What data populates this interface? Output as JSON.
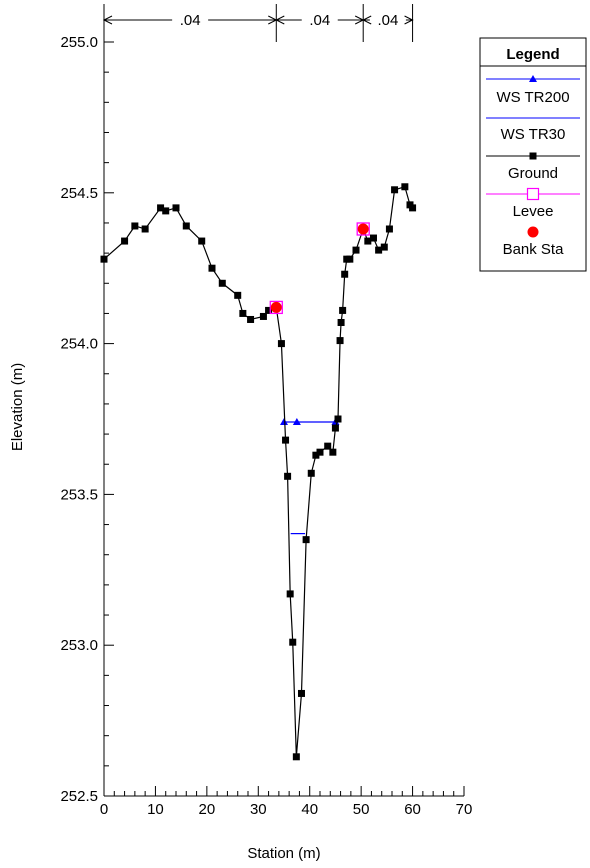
{
  "chart_data": {
    "type": "line",
    "title": "",
    "xlabel": "Station (m)",
    "ylabel": "Elevation (m)",
    "xlim": [
      0,
      70
    ],
    "ylim": [
      252.5,
      255.0
    ],
    "x_ticks": [
      0,
      10,
      20,
      30,
      40,
      50,
      60,
      70
    ],
    "y_ticks": [
      252.5,
      253.0,
      253.5,
      254.0,
      254.5,
      255.0
    ],
    "y_tick_labels": [
      "252.5",
      "253.0",
      "253.5",
      "254.0",
      "254.5",
      "255.0"
    ],
    "grid": false,
    "legend": {
      "title": "Legend",
      "placement": "top-right",
      "entries": [
        {
          "name": "WS TR200",
          "color": "#0000ff",
          "marker": "triangle"
        },
        {
          "name": "WS TR30",
          "color": "#0000ff",
          "marker": "none"
        },
        {
          "name": "Ground",
          "color": "#000000",
          "marker": "square"
        },
        {
          "name": "Levee",
          "color": "#ff00ff",
          "marker": "open-square"
        },
        {
          "name": "Bank Sta",
          "color": "#ff0000",
          "marker": "circle"
        }
      ]
    },
    "mannings_n": {
      "breaks": [
        0,
        33.5,
        50.4,
        60
      ],
      "labels": [
        ".04",
        ".04",
        ".04"
      ]
    },
    "series": [
      {
        "name": "Ground",
        "color": "#000000",
        "points": [
          [
            0.0,
            254.28
          ],
          [
            4.0,
            254.34
          ],
          [
            6.0,
            254.39
          ],
          [
            8.0,
            254.38
          ],
          [
            11.0,
            254.45
          ],
          [
            12.0,
            254.44
          ],
          [
            14.0,
            254.45
          ],
          [
            16.0,
            254.39
          ],
          [
            19.0,
            254.34
          ],
          [
            21.0,
            254.25
          ],
          [
            23.0,
            254.2
          ],
          [
            26.0,
            254.16
          ],
          [
            27.0,
            254.1
          ],
          [
            28.5,
            254.08
          ],
          [
            31.0,
            254.09
          ],
          [
            32.0,
            254.11
          ],
          [
            33.5,
            254.12
          ],
          [
            34.5,
            254.0
          ],
          [
            35.3,
            253.68
          ],
          [
            35.7,
            253.56
          ],
          [
            36.2,
            253.17
          ],
          [
            36.7,
            253.01
          ],
          [
            37.4,
            252.63
          ],
          [
            38.4,
            252.84
          ],
          [
            39.3,
            253.35
          ],
          [
            40.3,
            253.57
          ],
          [
            41.2,
            253.63
          ],
          [
            42.0,
            253.64
          ],
          [
            43.5,
            253.66
          ],
          [
            44.5,
            253.64
          ],
          [
            45.0,
            253.72
          ],
          [
            45.5,
            253.75
          ],
          [
            45.9,
            254.01
          ],
          [
            46.1,
            254.07
          ],
          [
            46.4,
            254.11
          ],
          [
            46.8,
            254.23
          ],
          [
            47.2,
            254.28
          ],
          [
            47.8,
            254.28
          ],
          [
            49.0,
            254.31
          ],
          [
            50.4,
            254.38
          ],
          [
            51.3,
            254.34
          ],
          [
            52.4,
            254.35
          ],
          [
            53.4,
            254.31
          ],
          [
            54.5,
            254.32
          ],
          [
            55.5,
            254.38
          ],
          [
            56.5,
            254.51
          ],
          [
            58.5,
            254.52
          ],
          [
            59.5,
            254.46
          ],
          [
            60.0,
            254.45
          ]
        ]
      },
      {
        "name": "WS TR200",
        "color": "#0000ff",
        "elevation": 253.74,
        "points": [
          [
            35.0,
            253.74
          ],
          [
            37.5,
            253.74
          ],
          [
            45.0,
            253.74
          ]
        ]
      },
      {
        "name": "WS TR30",
        "color": "#0000ff",
        "elevation": 253.37,
        "points": [
          [
            36.3,
            253.37
          ],
          [
            39.1,
            253.37
          ]
        ]
      },
      {
        "name": "Levee",
        "color": "#ff00ff",
        "points": [
          [
            33.5,
            254.12
          ],
          [
            50.4,
            254.38
          ]
        ]
      },
      {
        "name": "Bank Sta",
        "color": "#ff0000",
        "points": [
          [
            33.5,
            254.12
          ],
          [
            50.4,
            254.38
          ]
        ]
      }
    ]
  }
}
